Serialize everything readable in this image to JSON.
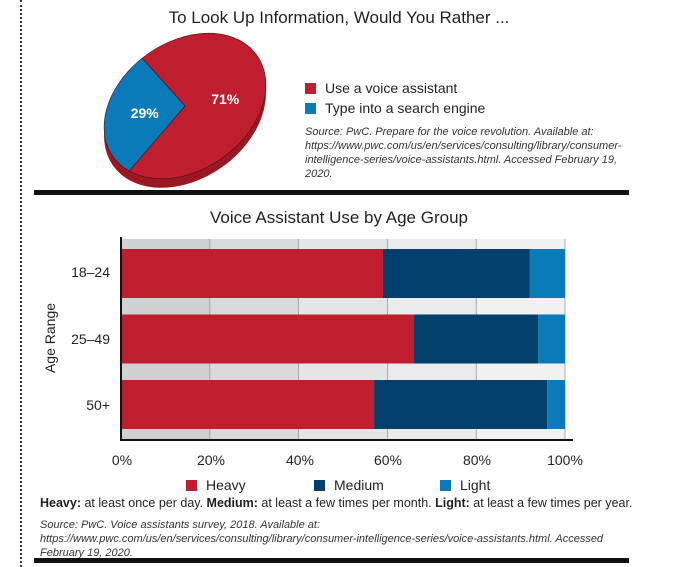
{
  "chart_data": [
    {
      "type": "pie",
      "title": "To Look Up Information, Would You Rather ...",
      "slices": [
        {
          "label": "Use a voice assistant",
          "value": 71,
          "display": "71%",
          "color": "#be1e2d"
        },
        {
          "label": "Type into a search engine",
          "value": 29,
          "display": "29%",
          "color": "#0a7bb8"
        }
      ],
      "source": "Source: PwC. Prepare for the voice revolution. Available at: https://www.pwc.com/us/en/services/consulting/library/consumer-intelligence-series/voice-assistants.html. Accessed February 19, 2020."
    },
    {
      "type": "bar",
      "stacked": true,
      "orientation": "horizontal",
      "title": "Voice Assistant Use by Age Group",
      "ylabel": "Age Range",
      "xlabel": "",
      "categories": [
        "18–24",
        "25–49",
        "50+"
      ],
      "series": [
        {
          "name": "Heavy",
          "values": [
            59,
            66,
            57
          ],
          "color": "#be1e2d"
        },
        {
          "name": "Medium",
          "values": [
            33,
            28,
            39
          ],
          "color": "#023f6b"
        },
        {
          "name": "Light",
          "values": [
            8,
            6,
            4
          ],
          "color": "#0a7bb8"
        }
      ],
      "xlim": [
        0,
        100
      ],
      "xticks": [
        "0%",
        "20%",
        "40%",
        "60%",
        "80%",
        "100%"
      ],
      "legend_position": "bottom",
      "note": {
        "heavy_term": "Heavy:",
        "heavy_def": " at least once per day. ",
        "medium_term": "Medium:",
        "medium_def": " at least a few times per month. ",
        "light_term": "Light:",
        "light_def": " at least a few times per year."
      },
      "source": "Source: PwC. Voice assistants survey, 2018. Available at: https://www.pwc.com/us/en/services/consulting/library/consumer-intelligence-series/voice-assistants.html. Accessed February 19, 2020."
    }
  ]
}
